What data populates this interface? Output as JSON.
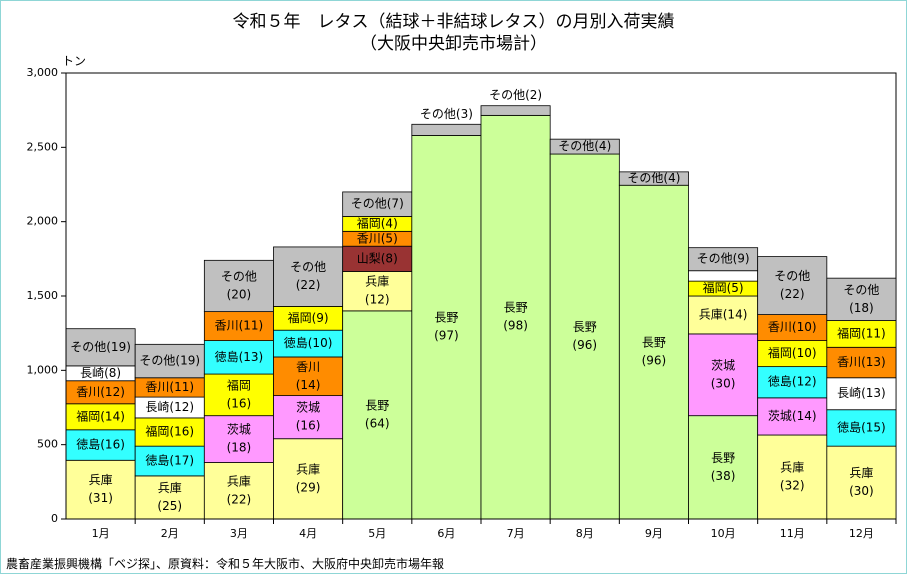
{
  "title": {
    "line1": "令和５年　レタス（結球＋非結球レタス）の月別入荷実績",
    "line2": "（大阪中央卸売市場計）"
  },
  "source": "農畜産業振興機構「ベジ探」、原資料：令和５年大阪市、大阪府中央卸売市場年報",
  "colors": {
    "兵庫": "#ffff99",
    "徳島": "#33ffff",
    "福岡": "#ffff00",
    "香川": "#ff8c00",
    "長崎": "#ffffff",
    "その他": "#c0c0c0",
    "茨城": "#ff99ff",
    "長野": "#ccff99",
    "山梨": "#993333"
  },
  "chart_data": {
    "type": "bar",
    "stacked": true,
    "ylabel": "トン",
    "ylim": [
      0,
      3000
    ],
    "yticks": [
      "0",
      "500",
      "1,000",
      "1,500",
      "2,000",
      "2,500",
      "3,000"
    ],
    "grid": false,
    "legend": "none",
    "categories": [
      "1月",
      "2月",
      "3月",
      "4月",
      "5月",
      "6月",
      "7月",
      "8月",
      "9月",
      "10月",
      "11月",
      "12月"
    ],
    "bars": [
      {
        "month": "1月",
        "segments": [
          {
            "name": "兵庫",
            "pct": "31",
            "value": 395
          },
          {
            "name": "徳島",
            "pct": "16",
            "value": 205
          },
          {
            "name": "福岡",
            "pct": "14",
            "value": 175
          },
          {
            "name": "香川",
            "pct": "12",
            "value": 155
          },
          {
            "name": "長崎",
            "pct": "8",
            "value": 100
          },
          {
            "name": "その他",
            "pct": "19",
            "value": 250
          }
        ]
      },
      {
        "month": "2月",
        "segments": [
          {
            "name": "兵庫",
            "pct": "25",
            "value": 290
          },
          {
            "name": "徳島",
            "pct": "17",
            "value": 200
          },
          {
            "name": "福岡",
            "pct": "16",
            "value": 190
          },
          {
            "name": "長崎",
            "pct": "12",
            "value": 140
          },
          {
            "name": "香川",
            "pct": "11",
            "value": 130
          },
          {
            "name": "その他",
            "pct": "19",
            "value": 225
          }
        ]
      },
      {
        "month": "3月",
        "segments": [
          {
            "name": "兵庫",
            "pct": "22",
            "value": 380
          },
          {
            "name": "茨城",
            "pct": "18",
            "value": 315
          },
          {
            "name": "福岡",
            "pct": "16",
            "value": 280
          },
          {
            "name": "徳島",
            "pct": "13",
            "value": 225
          },
          {
            "name": "香川",
            "pct": "11",
            "value": 195
          },
          {
            "name": "その他",
            "pct": "20",
            "value": 345
          }
        ]
      },
      {
        "month": "4月",
        "segments": [
          {
            "name": "兵庫",
            "pct": "29",
            "value": 540
          },
          {
            "name": "茨城",
            "pct": "16",
            "value": 290
          },
          {
            "name": "香川",
            "pct": "14",
            "value": 260
          },
          {
            "name": "徳島",
            "pct": "10",
            "value": 180
          },
          {
            "name": "福岡",
            "pct": "9",
            "value": 160
          },
          {
            "name": "その他",
            "pct": "22",
            "value": 400
          }
        ]
      },
      {
        "month": "5月",
        "segments": [
          {
            "name": "長野",
            "pct": "64",
            "value": 1400
          },
          {
            "name": "兵庫",
            "pct": "12",
            "value": 265
          },
          {
            "name": "山梨",
            "pct": "8",
            "value": 170
          },
          {
            "name": "香川",
            "pct": "5",
            "value": 100
          },
          {
            "name": "福岡",
            "pct": "4",
            "value": 100
          },
          {
            "name": "その他",
            "pct": "7",
            "value": 165
          }
        ]
      },
      {
        "month": "6月",
        "segments": [
          {
            "name": "長野",
            "pct": "97",
            "value": 2580
          },
          {
            "name": "その他",
            "pct": "3",
            "value": 75
          }
        ]
      },
      {
        "month": "7月",
        "segments": [
          {
            "name": "長野",
            "pct": "98",
            "value": 2715
          },
          {
            "name": "その他",
            "pct": "2",
            "value": 65
          }
        ]
      },
      {
        "month": "8月",
        "segments": [
          {
            "name": "長野",
            "pct": "96",
            "value": 2455
          },
          {
            "name": "その他",
            "pct": "4",
            "value": 100
          }
        ]
      },
      {
        "month": "9月",
        "segments": [
          {
            "name": "長野",
            "pct": "96",
            "value": 2245
          },
          {
            "name": "その他",
            "pct": "4",
            "value": 90
          }
        ]
      },
      {
        "month": "10月",
        "segments": [
          {
            "name": "長野",
            "pct": "38",
            "value": 695
          },
          {
            "name": "茨城",
            "pct": "30",
            "value": 550
          },
          {
            "name": "兵庫",
            "pct": "14",
            "value": 255
          },
          {
            "name": "福岡",
            "pct": "5",
            "value": 100
          },
          {
            "name": "長崎",
            "pct": "4",
            "value": 70
          },
          {
            "name": "その他",
            "pct": "9",
            "value": 155
          }
        ]
      },
      {
        "month": "11月",
        "segments": [
          {
            "name": "兵庫",
            "pct": "32",
            "value": 565
          },
          {
            "name": "茨城",
            "pct": "14",
            "value": 250
          },
          {
            "name": "徳島",
            "pct": "12",
            "value": 210
          },
          {
            "name": "福岡",
            "pct": "10",
            "value": 175
          },
          {
            "name": "香川",
            "pct": "10",
            "value": 175
          },
          {
            "name": "その他",
            "pct": "22",
            "value": 390
          }
        ]
      },
      {
        "month": "12月",
        "segments": [
          {
            "name": "兵庫",
            "pct": "30",
            "value": 490
          },
          {
            "name": "徳島",
            "pct": "15",
            "value": 245
          },
          {
            "name": "長崎",
            "pct": "13",
            "value": 215
          },
          {
            "name": "香川",
            "pct": "13",
            "value": 205
          },
          {
            "name": "福岡",
            "pct": "11",
            "value": 180
          },
          {
            "name": "その他",
            "pct": "18",
            "value": 285
          }
        ]
      }
    ]
  }
}
